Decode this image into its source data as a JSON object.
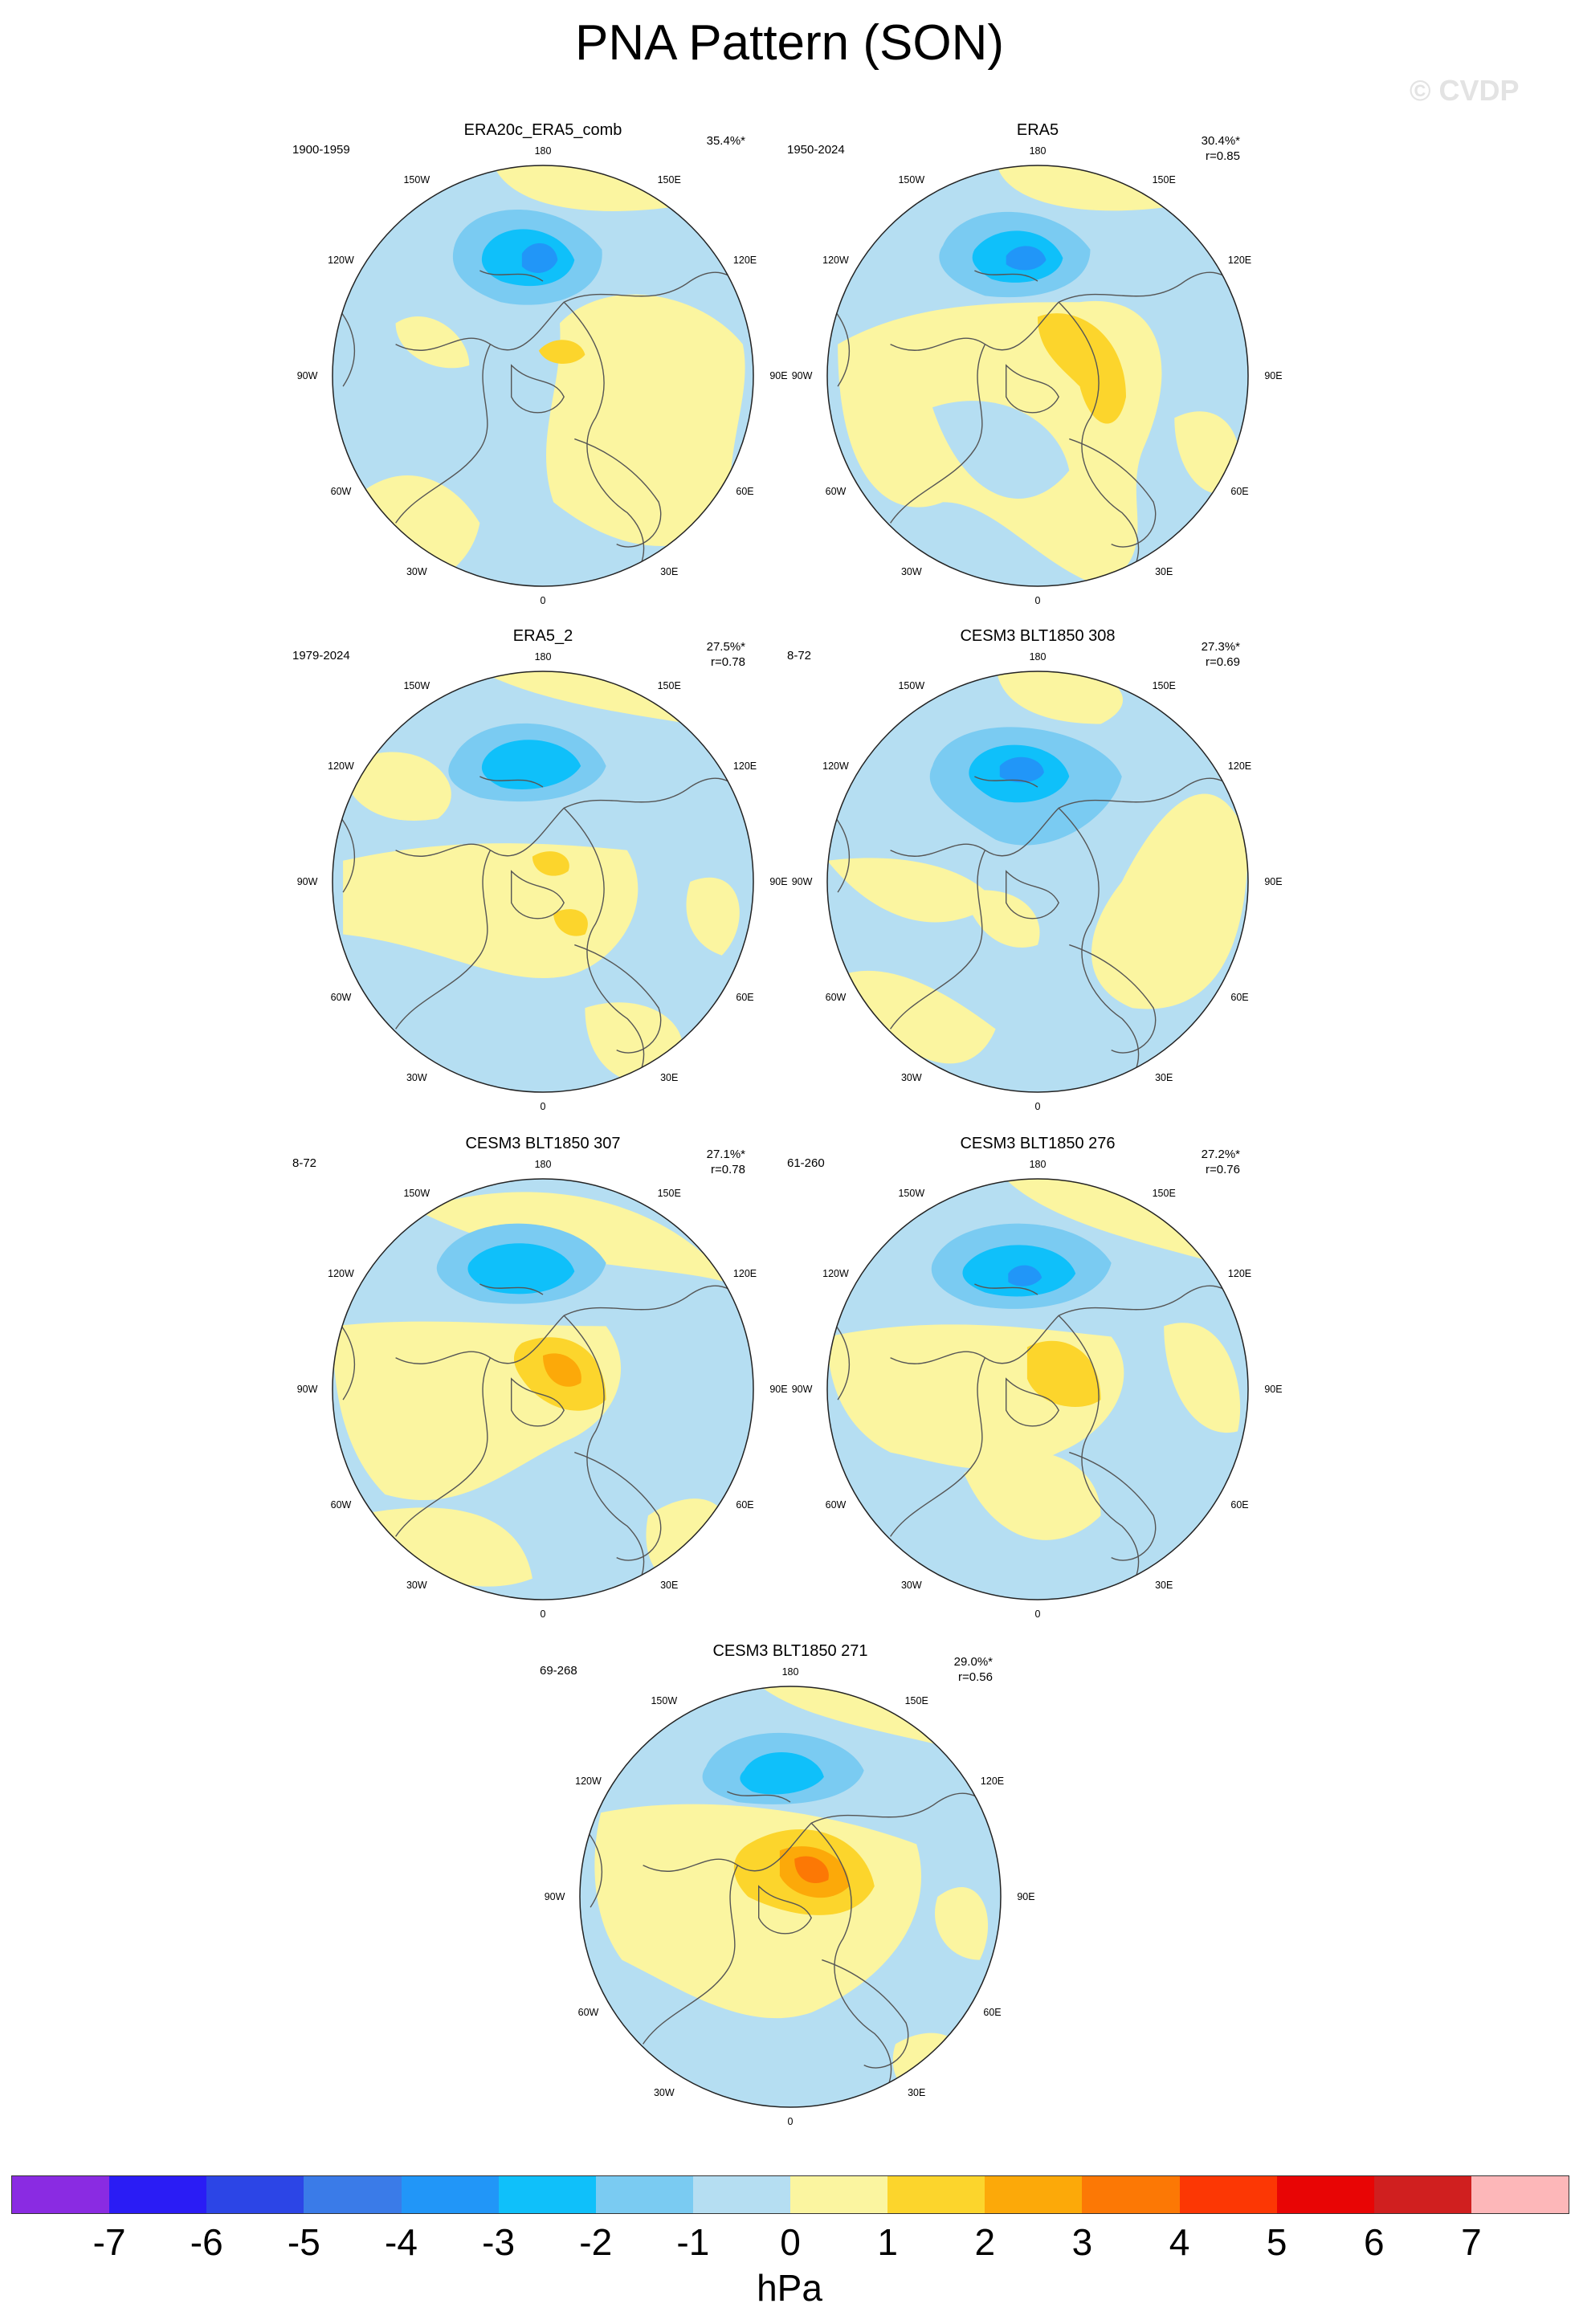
{
  "title": "PNA Pattern (SON)",
  "watermark": "© CVDP",
  "map_labels": {
    "n": "180",
    "ne": "150E",
    "ene": "120E",
    "e": "90E",
    "ese": "60E",
    "se": "30E",
    "s": "0",
    "sw": "30W",
    "wsw": "60W",
    "w": "90W",
    "wnw": "120W",
    "nw": "150W"
  },
  "panels": [
    {
      "name": "ERA20c_ERA5_comb",
      "years": "1900-1959",
      "pct": "35.4%*",
      "r": ""
    },
    {
      "name": "ERA5",
      "years": "1950-2024",
      "pct": "30.4%*",
      "r": "r=0.85"
    },
    {
      "name": "ERA5_2",
      "years": "1979-2024",
      "pct": "27.5%*",
      "r": "r=0.78"
    },
    {
      "name": "CESM3 BLT1850 308",
      "years": "8-72",
      "pct": "27.3%*",
      "r": "r=0.69"
    },
    {
      "name": "CESM3 BLT1850 307",
      "years": "8-72",
      "pct": "27.1%*",
      "r": "r=0.78"
    },
    {
      "name": "CESM3 BLT1850 276",
      "years": "61-260",
      "pct": "27.2%*",
      "r": "r=0.76"
    },
    {
      "name": "CESM3 BLT1850 271",
      "years": "69-268",
      "pct": "29.0%*",
      "r": "r=0.56"
    }
  ],
  "colorbar": {
    "colors": [
      "#8a2be2",
      "#2a1cf5",
      "#2c45e6",
      "#3a7be8",
      "#2196f8",
      "#0fc0fa",
      "#7acbf2",
      "#b5def2",
      "#fbf5a0",
      "#fcd52c",
      "#fca909",
      "#fc7805",
      "#fc3704",
      "#e80505",
      "#d01f1f",
      "#fdb7b9"
    ],
    "ticks": [
      "-7",
      "-6",
      "-5",
      "-4",
      "-3",
      "-2",
      "-1",
      "0",
      "1",
      "2",
      "3",
      "4",
      "5",
      "6",
      "7"
    ],
    "units": "hPa"
  },
  "contour_colors": {
    "neg1": "#b5def2",
    "neg2": "#7acbf2",
    "neg3": "#0fc0fa",
    "neg4": "#2196f8",
    "pos1": "#fbf5a0",
    "pos2": "#fcd52c",
    "pos3": "#fca909",
    "pos4": "#fc7805"
  }
}
